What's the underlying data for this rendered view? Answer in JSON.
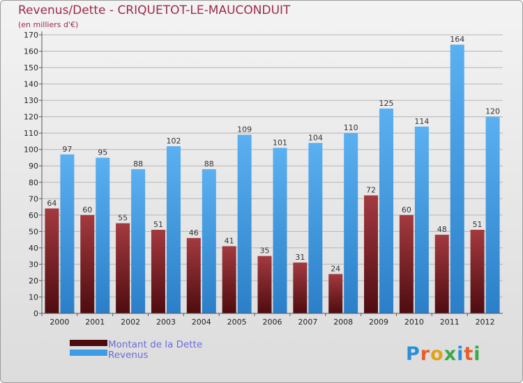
{
  "chart_data": {
    "type": "bar",
    "title": "Revenus/Dette - CRIQUETOT-LE-MAUCONDUIT",
    "subtitle": "(en milliers d'€)",
    "categories": [
      "2000",
      "2001",
      "2002",
      "2003",
      "2004",
      "2005",
      "2006",
      "2007",
      "2008",
      "2009",
      "2010",
      "2011",
      "2012"
    ],
    "series": [
      {
        "name": "Montant de la Dette",
        "color": "#7a1c22",
        "values": [
          64,
          60,
          55,
          51,
          46,
          41,
          35,
          31,
          24,
          72,
          60,
          48,
          51
        ]
      },
      {
        "name": "Revenus",
        "color": "#3d9ce6",
        "values": [
          97,
          95,
          88,
          102,
          88,
          109,
          101,
          104,
          110,
          125,
          114,
          164,
          120
        ]
      }
    ],
    "ylim": [
      0,
      170
    ],
    "ytick_step": 10,
    "grid": true,
    "legend_position": "bottom-left",
    "logo": "Proxiti"
  }
}
